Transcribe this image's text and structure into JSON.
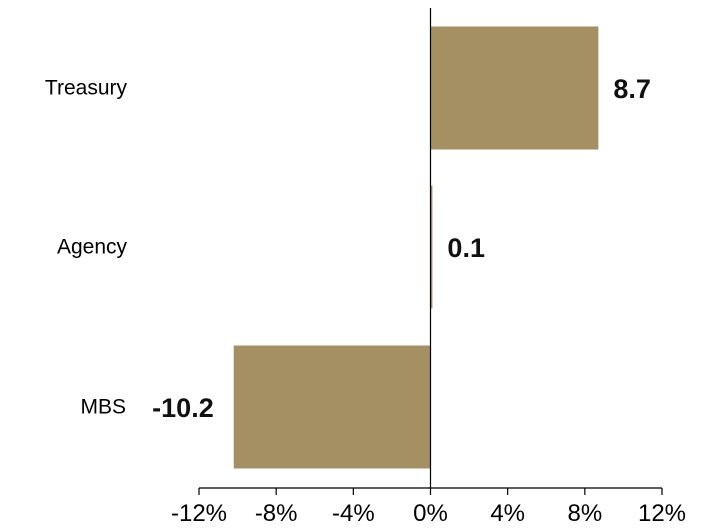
{
  "chart_data": {
    "type": "bar",
    "orientation": "horizontal",
    "categories": [
      "Treasury",
      "Agency",
      "MBS"
    ],
    "values": [
      8.7,
      0.1,
      -10.2
    ],
    "value_labels": [
      "8.7",
      "0.1",
      "-10.2"
    ],
    "xlim": [
      -12,
      12
    ],
    "x_ticks": [
      -12,
      -8,
      -4,
      0,
      4,
      8,
      12
    ],
    "x_tick_labels": [
      "-12%",
      "-8%",
      "-4%",
      "0%",
      "4%",
      "8%",
      "12%"
    ],
    "bar_color": "#a59063",
    "grid": false,
    "legend": "none"
  }
}
